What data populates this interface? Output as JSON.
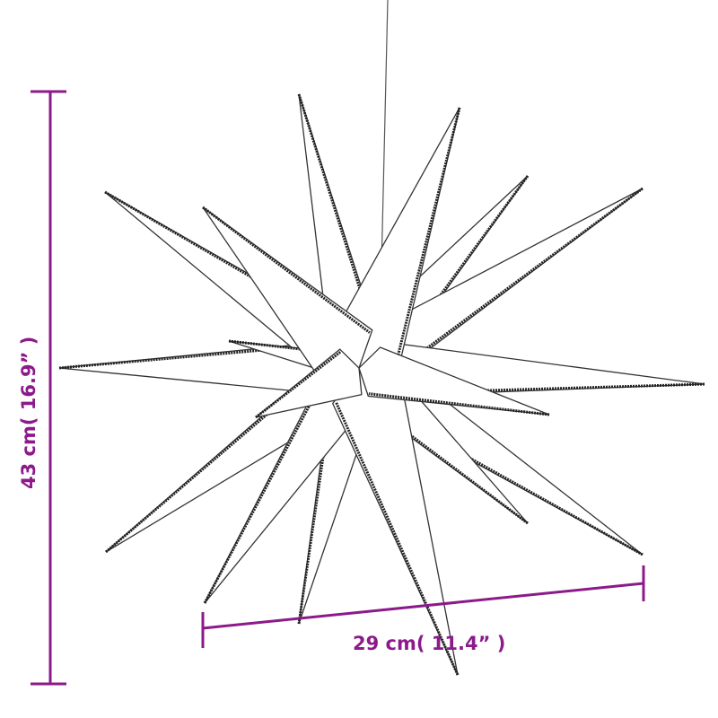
{
  "colors": {
    "dimension": "#8c1a8a",
    "outline": "#333333",
    "led": "#222222"
  },
  "dimensions": {
    "height_label": "43 cm( 16.9” )",
    "width_label": "29 cm( 11.4” )"
  }
}
